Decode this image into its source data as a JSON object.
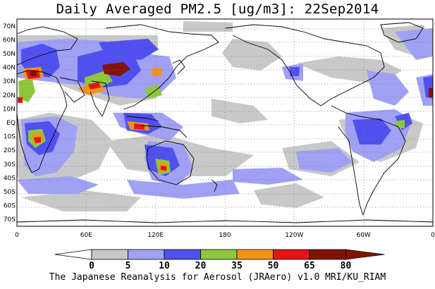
{
  "title": "Daily Averaged PM2.5 [ug/m3]: 22Sep2014",
  "credit": "The Japanese Reanalysis for Aerosol (JRAero) v1.0 MRI/KU_RIAM",
  "map": {
    "projection": "cylindrical equidistant",
    "lon_range": [
      0,
      360
    ],
    "lat_range": [
      -75,
      75
    ],
    "lat_labels": [
      "70N",
      "60N",
      "50N",
      "40N",
      "30N",
      "20N",
      "10N",
      "EQ",
      "10S",
      "20S",
      "30S",
      "40S",
      "50S",
      "60S",
      "70S"
    ],
    "lon_labels": [
      "0",
      "60E",
      "120E",
      "180",
      "120W",
      "60W",
      "0"
    ],
    "gridlines": "dotted"
  },
  "colorbar": {
    "levels": [
      "0",
      "5",
      "10",
      "20",
      "35",
      "50",
      "65",
      "80"
    ],
    "colors": [
      "#ffffff",
      "#c8c8c8",
      "#a0a0f5",
      "#5050f0",
      "#8cc83c",
      "#f09614",
      "#e61414",
      "#801400"
    ],
    "left_arrow_color": "#ffffff",
    "right_arrow_color": "#801400"
  }
}
